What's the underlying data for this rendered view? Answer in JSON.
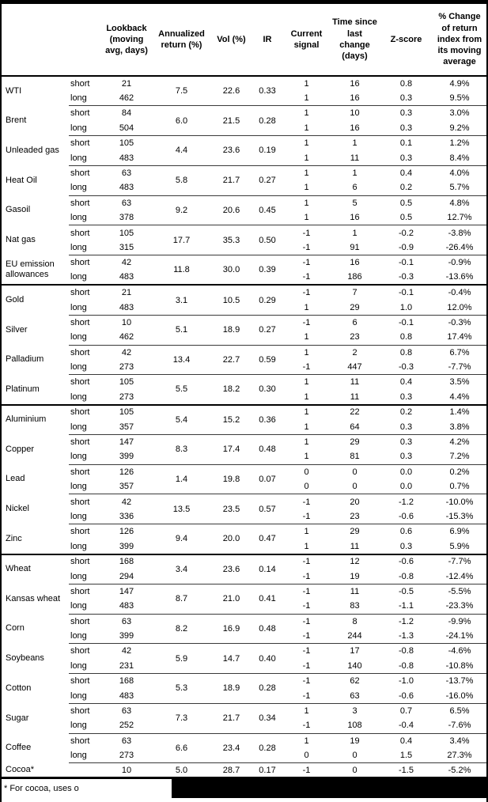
{
  "colors": {
    "text": "#000000",
    "background": "#ffffff",
    "rule": "#000000"
  },
  "header": {
    "columns": [
      "Lookback (moving avg, days)",
      "Annualized return (%)",
      "Vol (%)",
      "IR",
      "Current signal",
      "Time since last change (days)",
      "Z-score",
      "% Change of return index from its moving average"
    ]
  },
  "table": {
    "leg_labels": {
      "short": "short",
      "long": "long"
    },
    "commodities": [
      {
        "name": "WTI",
        "section": false,
        "ann": "7.5",
        "vol": "22.6",
        "ir": "0.33",
        "short": {
          "lookback": "21",
          "signal": "1",
          "time": "16",
          "z": "0.8",
          "pct": "4.9%"
        },
        "long": {
          "lookback": "462",
          "signal": "1",
          "time": "16",
          "z": "0.3",
          "pct": "9.5%"
        }
      },
      {
        "name": "Brent",
        "section": false,
        "ann": "6.0",
        "vol": "21.5",
        "ir": "0.28",
        "short": {
          "lookback": "84",
          "signal": "1",
          "time": "10",
          "z": "0.3",
          "pct": "3.0%"
        },
        "long": {
          "lookback": "504",
          "signal": "1",
          "time": "16",
          "z": "0.3",
          "pct": "9.2%"
        }
      },
      {
        "name": "Unleaded gas",
        "section": false,
        "ann": "4.4",
        "vol": "23.6",
        "ir": "0.19",
        "short": {
          "lookback": "105",
          "signal": "1",
          "time": "1",
          "z": "0.1",
          "pct": "1.2%"
        },
        "long": {
          "lookback": "483",
          "signal": "1",
          "time": "11",
          "z": "0.3",
          "pct": "8.4%"
        }
      },
      {
        "name": "Heat Oil",
        "section": false,
        "ann": "5.8",
        "vol": "21.7",
        "ir": "0.27",
        "short": {
          "lookback": "63",
          "signal": "1",
          "time": "1",
          "z": "0.4",
          "pct": "4.0%"
        },
        "long": {
          "lookback": "483",
          "signal": "1",
          "time": "6",
          "z": "0.2",
          "pct": "5.7%"
        }
      },
      {
        "name": "Gasoil",
        "section": false,
        "ann": "9.2",
        "vol": "20.6",
        "ir": "0.45",
        "short": {
          "lookback": "63",
          "signal": "1",
          "time": "5",
          "z": "0.5",
          "pct": "4.8%"
        },
        "long": {
          "lookback": "378",
          "signal": "1",
          "time": "16",
          "z": "0.5",
          "pct": "12.7%"
        }
      },
      {
        "name": "Nat gas",
        "section": false,
        "ann": "17.7",
        "vol": "35.3",
        "ir": "0.50",
        "short": {
          "lookback": "105",
          "signal": "-1",
          "time": "1",
          "z": "-0.2",
          "pct": "-3.8%"
        },
        "long": {
          "lookback": "315",
          "signal": "-1",
          "time": "91",
          "z": "-0.9",
          "pct": "-26.4%"
        }
      },
      {
        "name": "EU emission allowances",
        "section": false,
        "ann": "11.8",
        "vol": "30.0",
        "ir": "0.39",
        "short": {
          "lookback": "42",
          "signal": "-1",
          "time": "16",
          "z": "-0.1",
          "pct": "-0.9%"
        },
        "long": {
          "lookback": "483",
          "signal": "-1",
          "time": "186",
          "z": "-0.3",
          "pct": "-13.6%"
        }
      },
      {
        "name": "Gold",
        "section": true,
        "ann": "3.1",
        "vol": "10.5",
        "ir": "0.29",
        "short": {
          "lookback": "21",
          "signal": "-1",
          "time": "7",
          "z": "-0.1",
          "pct": "-0.4%"
        },
        "long": {
          "lookback": "483",
          "signal": "1",
          "time": "29",
          "z": "1.0",
          "pct": "12.0%"
        }
      },
      {
        "name": "Silver",
        "section": false,
        "ann": "5.1",
        "vol": "18.9",
        "ir": "0.27",
        "short": {
          "lookback": "10",
          "signal": "-1",
          "time": "6",
          "z": "-0.1",
          "pct": "-0.3%"
        },
        "long": {
          "lookback": "462",
          "signal": "1",
          "time": "23",
          "z": "0.8",
          "pct": "17.4%"
        }
      },
      {
        "name": "Palladium",
        "section": false,
        "ann": "13.4",
        "vol": "22.7",
        "ir": "0.59",
        "short": {
          "lookback": "42",
          "signal": "1",
          "time": "2",
          "z": "0.8",
          "pct": "6.7%"
        },
        "long": {
          "lookback": "273",
          "signal": "-1",
          "time": "447",
          "z": "-0.3",
          "pct": "-7.7%"
        }
      },
      {
        "name": "Platinum",
        "section": false,
        "ann": "5.5",
        "vol": "18.2",
        "ir": "0.30",
        "short": {
          "lookback": "105",
          "signal": "1",
          "time": "11",
          "z": "0.4",
          "pct": "3.5%"
        },
        "long": {
          "lookback": "273",
          "signal": "1",
          "time": "11",
          "z": "0.3",
          "pct": "4.4%"
        }
      },
      {
        "name": "Aluminium",
        "section": true,
        "ann": "5.4",
        "vol": "15.2",
        "ir": "0.36",
        "short": {
          "lookback": "105",
          "signal": "1",
          "time": "22",
          "z": "0.2",
          "pct": "1.4%"
        },
        "long": {
          "lookback": "357",
          "signal": "1",
          "time": "64",
          "z": "0.3",
          "pct": "3.8%"
        }
      },
      {
        "name": "Copper",
        "section": false,
        "ann": "8.3",
        "vol": "17.4",
        "ir": "0.48",
        "short": {
          "lookback": "147",
          "signal": "1",
          "time": "29",
          "z": "0.3",
          "pct": "4.2%"
        },
        "long": {
          "lookback": "399",
          "signal": "1",
          "time": "81",
          "z": "0.3",
          "pct": "7.2%"
        }
      },
      {
        "name": "Lead",
        "section": false,
        "ann": "1.4",
        "vol": "19.8",
        "ir": "0.07",
        "short": {
          "lookback": "126",
          "signal": "0",
          "time": "0",
          "z": "0.0",
          "pct": "0.2%"
        },
        "long": {
          "lookback": "357",
          "signal": "0",
          "time": "0",
          "z": "0.0",
          "pct": "0.7%"
        }
      },
      {
        "name": "Nickel",
        "section": false,
        "ann": "13.5",
        "vol": "23.5",
        "ir": "0.57",
        "short": {
          "lookback": "42",
          "signal": "-1",
          "time": "20",
          "z": "-1.2",
          "pct": "-10.0%"
        },
        "long": {
          "lookback": "336",
          "signal": "-1",
          "time": "23",
          "z": "-0.6",
          "pct": "-15.3%"
        }
      },
      {
        "name": "Zinc",
        "section": false,
        "ann": "9.4",
        "vol": "20.0",
        "ir": "0.47",
        "short": {
          "lookback": "126",
          "signal": "1",
          "time": "29",
          "z": "0.6",
          "pct": "6.9%"
        },
        "long": {
          "lookback": "399",
          "signal": "1",
          "time": "11",
          "z": "0.3",
          "pct": "5.9%"
        }
      },
      {
        "name": "Wheat",
        "section": true,
        "ann": "3.4",
        "vol": "23.6",
        "ir": "0.14",
        "short": {
          "lookback": "168",
          "signal": "-1",
          "time": "12",
          "z": "-0.6",
          "pct": "-7.7%"
        },
        "long": {
          "lookback": "294",
          "signal": "-1",
          "time": "19",
          "z": "-0.8",
          "pct": "-12.4%"
        }
      },
      {
        "name": "Kansas wheat",
        "section": false,
        "ann": "8.7",
        "vol": "21.0",
        "ir": "0.41",
        "short": {
          "lookback": "147",
          "signal": "-1",
          "time": "11",
          "z": "-0.5",
          "pct": "-5.5%"
        },
        "long": {
          "lookback": "483",
          "signal": "-1",
          "time": "83",
          "z": "-1.1",
          "pct": "-23.3%"
        }
      },
      {
        "name": "Corn",
        "section": false,
        "ann": "8.2",
        "vol": "16.9",
        "ir": "0.48",
        "short": {
          "lookback": "63",
          "signal": "-1",
          "time": "8",
          "z": "-1.2",
          "pct": "-9.9%"
        },
        "long": {
          "lookback": "399",
          "signal": "-1",
          "time": "244",
          "z": "-1.3",
          "pct": "-24.1%"
        }
      },
      {
        "name": "Soybeans",
        "section": false,
        "ann": "5.9",
        "vol": "14.7",
        "ir": "0.40",
        "short": {
          "lookback": "42",
          "signal": "-1",
          "time": "17",
          "z": "-0.8",
          "pct": "-4.6%"
        },
        "long": {
          "lookback": "231",
          "signal": "-1",
          "time": "140",
          "z": "-0.8",
          "pct": "-10.8%"
        }
      },
      {
        "name": "Cotton",
        "section": false,
        "ann": "5.3",
        "vol": "18.9",
        "ir": "0.28",
        "short": {
          "lookback": "168",
          "signal": "-1",
          "time": "62",
          "z": "-1.0",
          "pct": "-13.7%"
        },
        "long": {
          "lookback": "483",
          "signal": "-1",
          "time": "63",
          "z": "-0.6",
          "pct": "-16.0%"
        }
      },
      {
        "name": "Sugar",
        "section": false,
        "ann": "7.3",
        "vol": "21.7",
        "ir": "0.34",
        "short": {
          "lookback": "63",
          "signal": "1",
          "time": "3",
          "z": "0.7",
          "pct": "6.5%"
        },
        "long": {
          "lookback": "252",
          "signal": "-1",
          "time": "108",
          "z": "-0.4",
          "pct": "-7.6%"
        }
      },
      {
        "name": "Coffee",
        "section": false,
        "ann": "6.6",
        "vol": "23.4",
        "ir": "0.28",
        "short": {
          "lookback": "63",
          "signal": "1",
          "time": "19",
          "z": "0.4",
          "pct": "3.4%"
        },
        "long": {
          "lookback": "273",
          "signal": "0",
          "time": "0",
          "z": "1.5",
          "pct": "27.3%"
        }
      },
      {
        "name": "Cocoa*",
        "section": false,
        "single": true,
        "ann": "5.0",
        "vol": "28.7",
        "ir": "0.17",
        "row": {
          "lookback": "10",
          "signal": "-1",
          "time": "0",
          "z": "-1.5",
          "pct": "-5.2%"
        }
      }
    ]
  },
  "footnote": {
    "text": "* For cocoa, uses o"
  }
}
